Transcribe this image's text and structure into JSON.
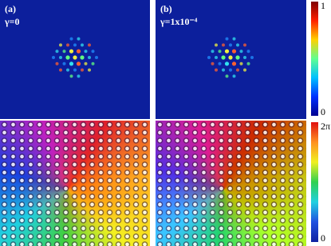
{
  "panels": [
    {
      "label": "(a)",
      "param": "γ=0"
    },
    {
      "label": "(b)",
      "param": "γ=1x10⁻⁴"
    }
  ],
  "colorbars": [
    {
      "top": "1",
      "bottom": "0"
    },
    {
      "top": "2π",
      "bottom": "0"
    }
  ]
}
